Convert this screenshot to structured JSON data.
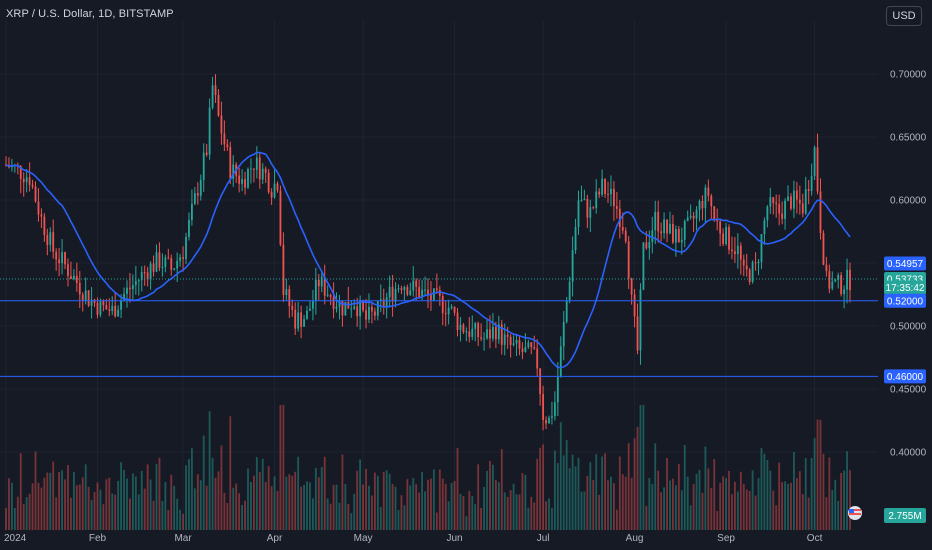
{
  "header": {
    "symbol_title": "XRP / U.S. Dollar, 1D, BITSTAMP",
    "currency_button": "USD"
  },
  "colors": {
    "background": "#161a25",
    "up": "#26a69a",
    "down": "#ef5350",
    "ma": "#2962ff",
    "hline": "#2962ff",
    "grid": "#1f2330"
  },
  "chart_data": {
    "type": "candlestick",
    "y_ticks": [
      "0.70000",
      "0.65000",
      "0.60000",
      "0.55000",
      "0.50000",
      "0.45000",
      "0.40000"
    ],
    "y_tick_values": [
      0.7,
      0.65,
      0.6,
      0.55,
      0.5,
      0.45,
      0.4
    ],
    "x_ticks": [
      "2024",
      "Feb",
      "Mar",
      "Apr",
      "May",
      "Jun",
      "Jul",
      "Aug",
      "Sep",
      "Oct"
    ],
    "x_tick_days": [
      0,
      31,
      60,
      91,
      121,
      152,
      182,
      213,
      244,
      274
    ],
    "ylim": [
      0.38,
      0.75
    ],
    "days_total": 286,
    "horizontal_lines": [
      0.52,
      0.46
    ],
    "price_tags": [
      {
        "label": "0.54957",
        "value": 0.5496,
        "color": "#2962ff"
      },
      {
        "label": "0.53733",
        "value": 0.5373,
        "color": "#26a69a"
      },
      {
        "label": "17:35:42",
        "value": 0.5305,
        "color": "#26a69a"
      },
      {
        "label": "0.52000",
        "value": 0.52,
        "color": "#2962ff"
      },
      {
        "label": "0.46000",
        "value": 0.46,
        "color": "#2962ff"
      }
    ],
    "volume_tag": "2.755M",
    "close_anchors": [
      [
        0,
        0.628
      ],
      [
        4,
        0.624
      ],
      [
        8,
        0.618
      ],
      [
        12,
        0.585
      ],
      [
        16,
        0.56
      ],
      [
        20,
        0.548
      ],
      [
        24,
        0.535
      ],
      [
        28,
        0.522
      ],
      [
        32,
        0.515
      ],
      [
        36,
        0.512
      ],
      [
        40,
        0.525
      ],
      [
        44,
        0.535
      ],
      [
        48,
        0.545
      ],
      [
        52,
        0.552
      ],
      [
        56,
        0.545
      ],
      [
        60,
        0.56
      ],
      [
        64,
        0.6
      ],
      [
        68,
        0.64
      ],
      [
        70,
        0.69
      ],
      [
        72,
        0.665
      ],
      [
        76,
        0.625
      ],
      [
        80,
        0.615
      ],
      [
        84,
        0.63
      ],
      [
        88,
        0.62
      ],
      [
        90,
        0.61
      ],
      [
        92,
        0.615
      ],
      [
        94,
        0.528
      ],
      [
        98,
        0.505
      ],
      [
        102,
        0.508
      ],
      [
        106,
        0.535
      ],
      [
        110,
        0.525
      ],
      [
        114,
        0.515
      ],
      [
        118,
        0.52
      ],
      [
        122,
        0.505
      ],
      [
        126,
        0.512
      ],
      [
        130,
        0.525
      ],
      [
        134,
        0.535
      ],
      [
        138,
        0.53
      ],
      [
        142,
        0.525
      ],
      [
        146,
        0.52
      ],
      [
        150,
        0.515
      ],
      [
        154,
        0.5
      ],
      [
        158,
        0.495
      ],
      [
        162,
        0.49
      ],
      [
        166,
        0.498
      ],
      [
        170,
        0.485
      ],
      [
        174,
        0.48
      ],
      [
        178,
        0.478
      ],
      [
        180,
        0.47
      ],
      [
        182,
        0.43
      ],
      [
        184,
        0.425
      ],
      [
        186,
        0.44
      ],
      [
        190,
        0.52
      ],
      [
        194,
        0.6
      ],
      [
        198,
        0.59
      ],
      [
        202,
        0.61
      ],
      [
        206,
        0.6
      ],
      [
        210,
        0.575
      ],
      [
        212,
        0.518
      ],
      [
        214,
        0.48
      ],
      [
        216,
        0.56
      ],
      [
        220,
        0.585
      ],
      [
        224,
        0.575
      ],
      [
        228,
        0.57
      ],
      [
        232,
        0.58
      ],
      [
        236,
        0.6
      ],
      [
        238,
        0.605
      ],
      [
        240,
        0.585
      ],
      [
        244,
        0.57
      ],
      [
        248,
        0.56
      ],
      [
        250,
        0.54
      ],
      [
        254,
        0.545
      ],
      [
        258,
        0.595
      ],
      [
        262,
        0.59
      ],
      [
        266,
        0.6
      ],
      [
        270,
        0.595
      ],
      [
        272,
        0.615
      ],
      [
        274,
        0.64
      ],
      [
        276,
        0.58
      ],
      [
        278,
        0.535
      ],
      [
        282,
        0.532
      ],
      [
        286,
        0.537
      ]
    ]
  }
}
